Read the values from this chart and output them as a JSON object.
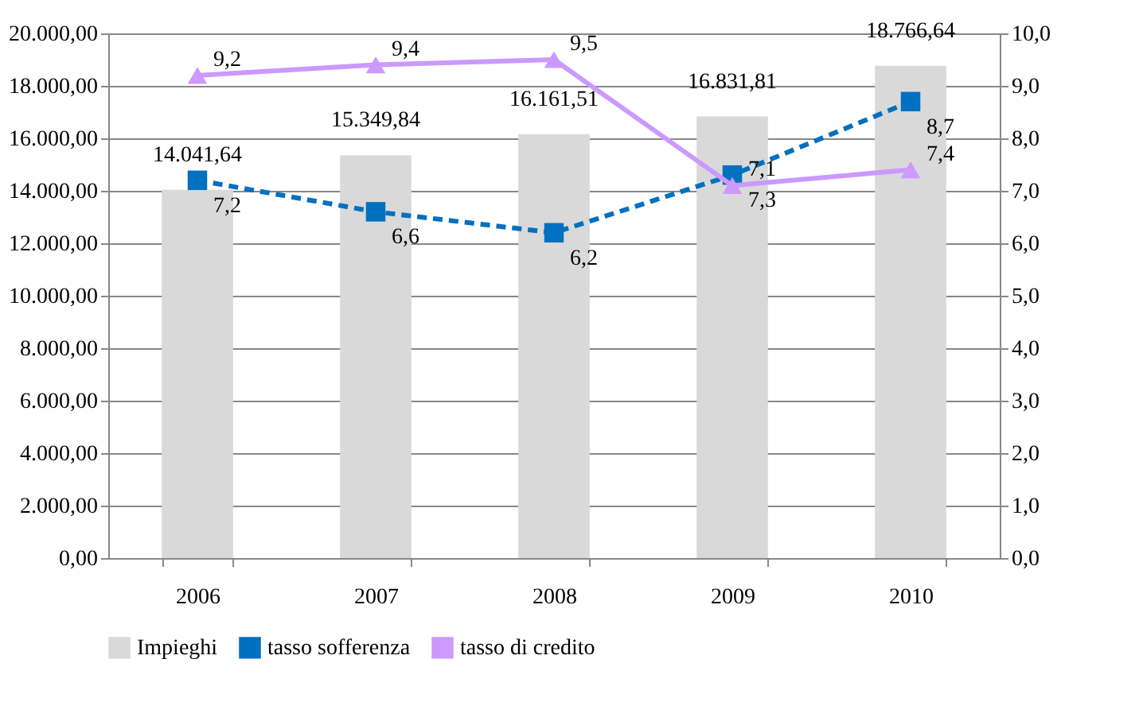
{
  "chart_data": {
    "type": "bar",
    "categories": [
      "2006",
      "2007",
      "2008",
      "2009",
      "2010"
    ],
    "series": [
      {
        "name": "Impieghi",
        "color": "#d9d9d9",
        "values": [
          14041.64,
          15349.84,
          16161.51,
          16831.81,
          18766.64
        ],
        "value_labels": [
          "14.041,64",
          "15.349,84",
          "16.161,51",
          "16.831,81",
          "18.766,64"
        ]
      },
      {
        "name": "tasso sofferenza",
        "type": "line",
        "axis": "y2",
        "color": "#0070c0",
        "marker": "square",
        "line_style": "dashed",
        "values": [
          7.2,
          6.6,
          6.2,
          7.3,
          8.7
        ],
        "value_labels": [
          "7,2",
          "6,6",
          "6,2",
          "7,3",
          "8,7"
        ]
      },
      {
        "name": "tasso di credito",
        "type": "line",
        "axis": "y2",
        "color": "#cc99ff",
        "marker": "triangle",
        "line_style": "solid",
        "values": [
          9.2,
          9.4,
          9.5,
          7.1,
          7.4
        ],
        "value_labels": [
          "9,2",
          "9,4",
          "9,5",
          "7,1",
          "7,4"
        ]
      }
    ],
    "ylim": [
      0,
      20000
    ],
    "yticks": [
      {
        "value": 0,
        "label": "0,00"
      },
      {
        "value": 2000,
        "label": "2.000,00"
      },
      {
        "value": 4000,
        "label": "4.000,00"
      },
      {
        "value": 6000,
        "label": "6.000,00"
      },
      {
        "value": 8000,
        "label": "8.000,00"
      },
      {
        "value": 10000,
        "label": "10.000,00"
      },
      {
        "value": 12000,
        "label": "12.000,00"
      },
      {
        "value": 14000,
        "label": "14.000,00"
      },
      {
        "value": 16000,
        "label": "16.000,00"
      },
      {
        "value": 18000,
        "label": "18.000,00"
      },
      {
        "value": 20000,
        "label": "20.000,00"
      }
    ],
    "y2lim": [
      0,
      10
    ],
    "y2ticks": [
      {
        "value": 0,
        "label": "0,0"
      },
      {
        "value": 1,
        "label": "1,0"
      },
      {
        "value": 2,
        "label": "2,0"
      },
      {
        "value": 3,
        "label": "3,0"
      },
      {
        "value": 4,
        "label": "4,0"
      },
      {
        "value": 5,
        "label": "5,0"
      },
      {
        "value": 6,
        "label": "6,0"
      },
      {
        "value": 7,
        "label": "7,0"
      },
      {
        "value": 8,
        "label": "8,0"
      },
      {
        "value": 9,
        "label": "9,0"
      },
      {
        "value": 10,
        "label": "10,0"
      }
    ],
    "grid": "y",
    "legend": "bottom"
  }
}
